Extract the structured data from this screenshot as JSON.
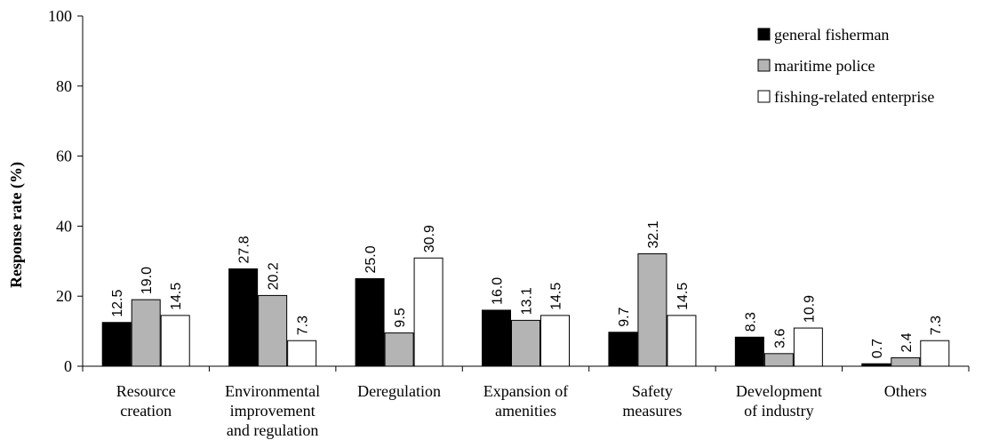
{
  "chart_data": {
    "type": "bar",
    "ylabel": "Response rate (%)",
    "ylim": [
      0,
      100
    ],
    "yticks": [
      0,
      20,
      40,
      60,
      80,
      100
    ],
    "grid": false,
    "legend_position": "top-right",
    "categories": [
      [
        "Resource",
        "creation"
      ],
      [
        "Environmental",
        "improvement",
        "and regulation"
      ],
      [
        "Deregulation"
      ],
      [
        "Expansion of",
        "amenities"
      ],
      [
        "Safety",
        "measures"
      ],
      [
        "Development",
        "of industry"
      ],
      [
        "Others"
      ]
    ],
    "value_labels": [
      [
        "12.5",
        "19.0",
        "14.5"
      ],
      [
        "27.8",
        "20.2",
        "7.3"
      ],
      [
        "25.0",
        "9.5",
        "30.9"
      ],
      [
        "16.0",
        "13.1",
        "14.5"
      ],
      [
        "9.7",
        "32.1",
        "14.5"
      ],
      [
        "8.3",
        "3.6",
        "10.9"
      ],
      [
        "0.7",
        "2.4",
        "7.3"
      ]
    ],
    "series": [
      {
        "name": "general fisherman",
        "color": "#000000",
        "values": [
          12.5,
          27.8,
          25.0,
          16.0,
          9.7,
          8.3,
          0.7
        ]
      },
      {
        "name": "maritime police",
        "color": "#b4b4b4",
        "values": [
          19.0,
          20.2,
          9.5,
          13.1,
          32.1,
          3.6,
          2.4
        ]
      },
      {
        "name": "fishing-related enterprise",
        "color": "#ffffff",
        "values": [
          14.5,
          7.3,
          30.9,
          14.5,
          14.5,
          10.9,
          7.3
        ]
      }
    ]
  }
}
